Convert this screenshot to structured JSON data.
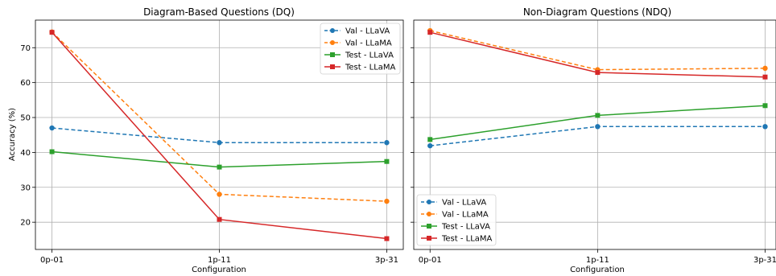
{
  "chart_data": [
    {
      "type": "line",
      "title": "Diagram-Based Questions (DQ)",
      "xlabel": "Configuration",
      "ylabel": "Accuracy (%)",
      "categories": [
        "0p-01",
        "1p-11",
        "3p-31"
      ],
      "ylim": [
        12.2,
        77.9
      ],
      "yticks": [
        20,
        30,
        40,
        50,
        60,
        70
      ],
      "grid": true,
      "legend_position": "top-right",
      "series": [
        {
          "name": "Val - LLaVA",
          "values": [
            47.0,
            42.8,
            42.8
          ],
          "color": "#1f77b4",
          "dashed": true,
          "marker": "circle"
        },
        {
          "name": "Val - LLaMA",
          "values": [
            74.5,
            28.0,
            26.0
          ],
          "color": "#ff7f0e",
          "dashed": true,
          "marker": "circle"
        },
        {
          "name": "Test - LLaVA",
          "values": [
            40.2,
            35.8,
            37.4
          ],
          "color": "#2ca02c",
          "dashed": false,
          "marker": "square"
        },
        {
          "name": "Test - LLaMA",
          "values": [
            74.4,
            20.8,
            15.3
          ],
          "color": "#d62728",
          "dashed": false,
          "marker": "square"
        }
      ]
    },
    {
      "type": "line",
      "title": "Non-Diagram Questions (NDQ)",
      "xlabel": "Configuration",
      "ylabel": "",
      "categories": [
        "0p-01",
        "1p-11",
        "3p-31"
      ],
      "ylim": [
        12.2,
        77.9
      ],
      "yticks": [
        20,
        30,
        40,
        50,
        60,
        70
      ],
      "grid": true,
      "legend_position": "bottom-left",
      "series": [
        {
          "name": "Val - LLaVA",
          "values": [
            41.9,
            47.4,
            47.4
          ],
          "color": "#1f77b4",
          "dashed": true,
          "marker": "circle"
        },
        {
          "name": "Val - LLaMA",
          "values": [
            74.9,
            63.7,
            64.1
          ],
          "color": "#ff7f0e",
          "dashed": true,
          "marker": "circle"
        },
        {
          "name": "Test - LLaVA",
          "values": [
            43.7,
            50.6,
            53.4
          ],
          "color": "#2ca02c",
          "dashed": false,
          "marker": "square"
        },
        {
          "name": "Test - LLaMA",
          "values": [
            74.4,
            62.9,
            61.6
          ],
          "color": "#d62728",
          "dashed": false,
          "marker": "square"
        }
      ]
    }
  ]
}
